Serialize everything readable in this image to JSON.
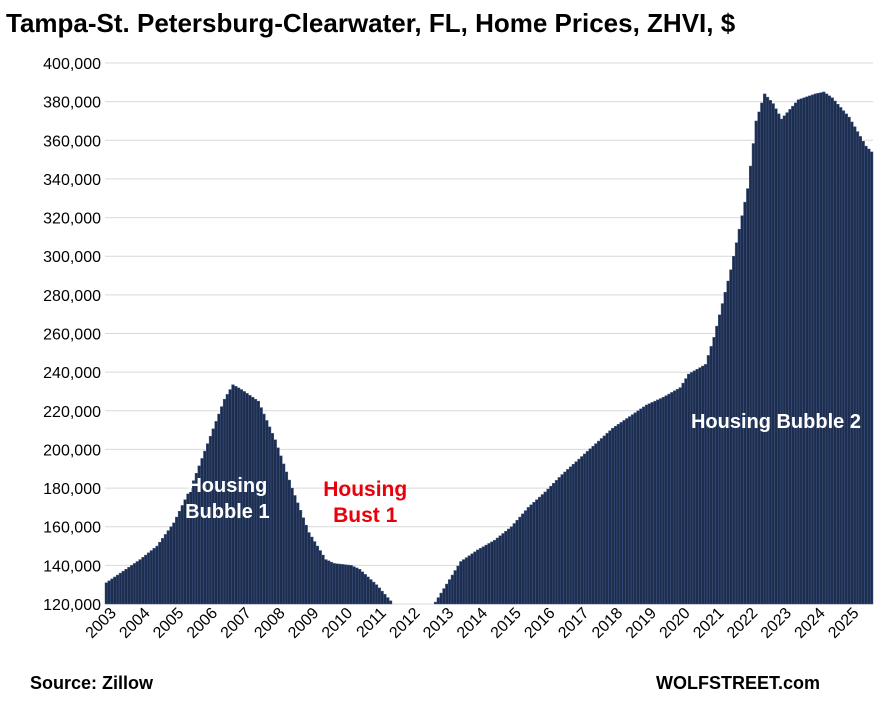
{
  "chart_data": {
    "type": "bar",
    "title": "Tampa-St. Petersburg-Clearwater, FL, Home Prices, ZHVI, $",
    "xlabel": "",
    "ylabel": "",
    "ylim": [
      120000,
      400000
    ],
    "y_ticks": [
      "120,000",
      "140,000",
      "160,000",
      "180,000",
      "200,000",
      "220,000",
      "240,000",
      "260,000",
      "280,000",
      "300,000",
      "320,000",
      "340,000",
      "360,000",
      "380,000",
      "400,000"
    ],
    "x_ticks": [
      "2003",
      "2004",
      "2005",
      "2006",
      "2007",
      "2008",
      "2009",
      "2010",
      "2011",
      "2012",
      "2013",
      "2014",
      "2015",
      "2016",
      "2017",
      "2018",
      "2019",
      "2020",
      "2021",
      "2022",
      "2023",
      "2024",
      "2025"
    ],
    "grid": true,
    "frequency": "monthly",
    "start": "2003-01",
    "end": "2025-09",
    "anchors": [
      [
        "2003-01",
        131000
      ],
      [
        "2003-07",
        137000
      ],
      [
        "2004-01",
        143000
      ],
      [
        "2004-07",
        150000
      ],
      [
        "2005-01",
        162000
      ],
      [
        "2005-07",
        180000
      ],
      [
        "2006-01",
        203000
      ],
      [
        "2006-07",
        226000
      ],
      [
        "2006-10",
        233500
      ],
      [
        "2007-01",
        231000
      ],
      [
        "2007-07",
        225000
      ],
      [
        "2008-01",
        205000
      ],
      [
        "2008-07",
        180000
      ],
      [
        "2009-01",
        157000
      ],
      [
        "2009-07",
        143000
      ],
      [
        "2009-10",
        141000
      ],
      [
        "2010-04",
        140000
      ],
      [
        "2010-07",
        138000
      ],
      [
        "2011-01",
        130000
      ],
      [
        "2011-07",
        120000
      ],
      [
        "2012-07",
        114500
      ],
      [
        "2012-10",
        121000
      ],
      [
        "2013-01",
        128000
      ],
      [
        "2013-07",
        142000
      ],
      [
        "2014-01",
        148000
      ],
      [
        "2014-07",
        153000
      ],
      [
        "2015-01",
        160000
      ],
      [
        "2015-07",
        170000
      ],
      [
        "2016-01",
        178000
      ],
      [
        "2016-07",
        187000
      ],
      [
        "2017-01",
        195000
      ],
      [
        "2017-07",
        203000
      ],
      [
        "2018-01",
        211000
      ],
      [
        "2018-07",
        217000
      ],
      [
        "2019-01",
        223000
      ],
      [
        "2019-07",
        227000
      ],
      [
        "2020-01",
        232000
      ],
      [
        "2020-04",
        239000
      ],
      [
        "2020-10",
        244000
      ],
      [
        "2021-01",
        258000
      ],
      [
        "2021-07",
        293000
      ],
      [
        "2022-01",
        335000
      ],
      [
        "2022-04",
        370000
      ],
      [
        "2022-07",
        384000
      ],
      [
        "2022-10",
        379000
      ],
      [
        "2023-01",
        371000
      ],
      [
        "2023-04",
        376000
      ],
      [
        "2023-07",
        381000
      ],
      [
        "2024-01",
        384000
      ],
      [
        "2024-04",
        385000
      ],
      [
        "2024-07",
        382000
      ],
      [
        "2025-01",
        372000
      ],
      [
        "2025-07",
        357000
      ],
      [
        "2025-09",
        354000
      ]
    ],
    "annotations": [
      {
        "text": [
          "Housing",
          "Bubble 1"
        ],
        "color": "white",
        "x": "2006-08",
        "y": 178000
      },
      {
        "text": [
          "Housing",
          "Bust 1"
        ],
        "color": "red",
        "x": "2010-09",
        "y": 176000
      },
      {
        "text": [
          "Housing Bubble 2"
        ],
        "color": "white",
        "x": "2022-11",
        "y": 211000
      }
    ]
  },
  "footer": {
    "source": "Source: Zillow",
    "brand": "WOLFSTREET.com"
  }
}
